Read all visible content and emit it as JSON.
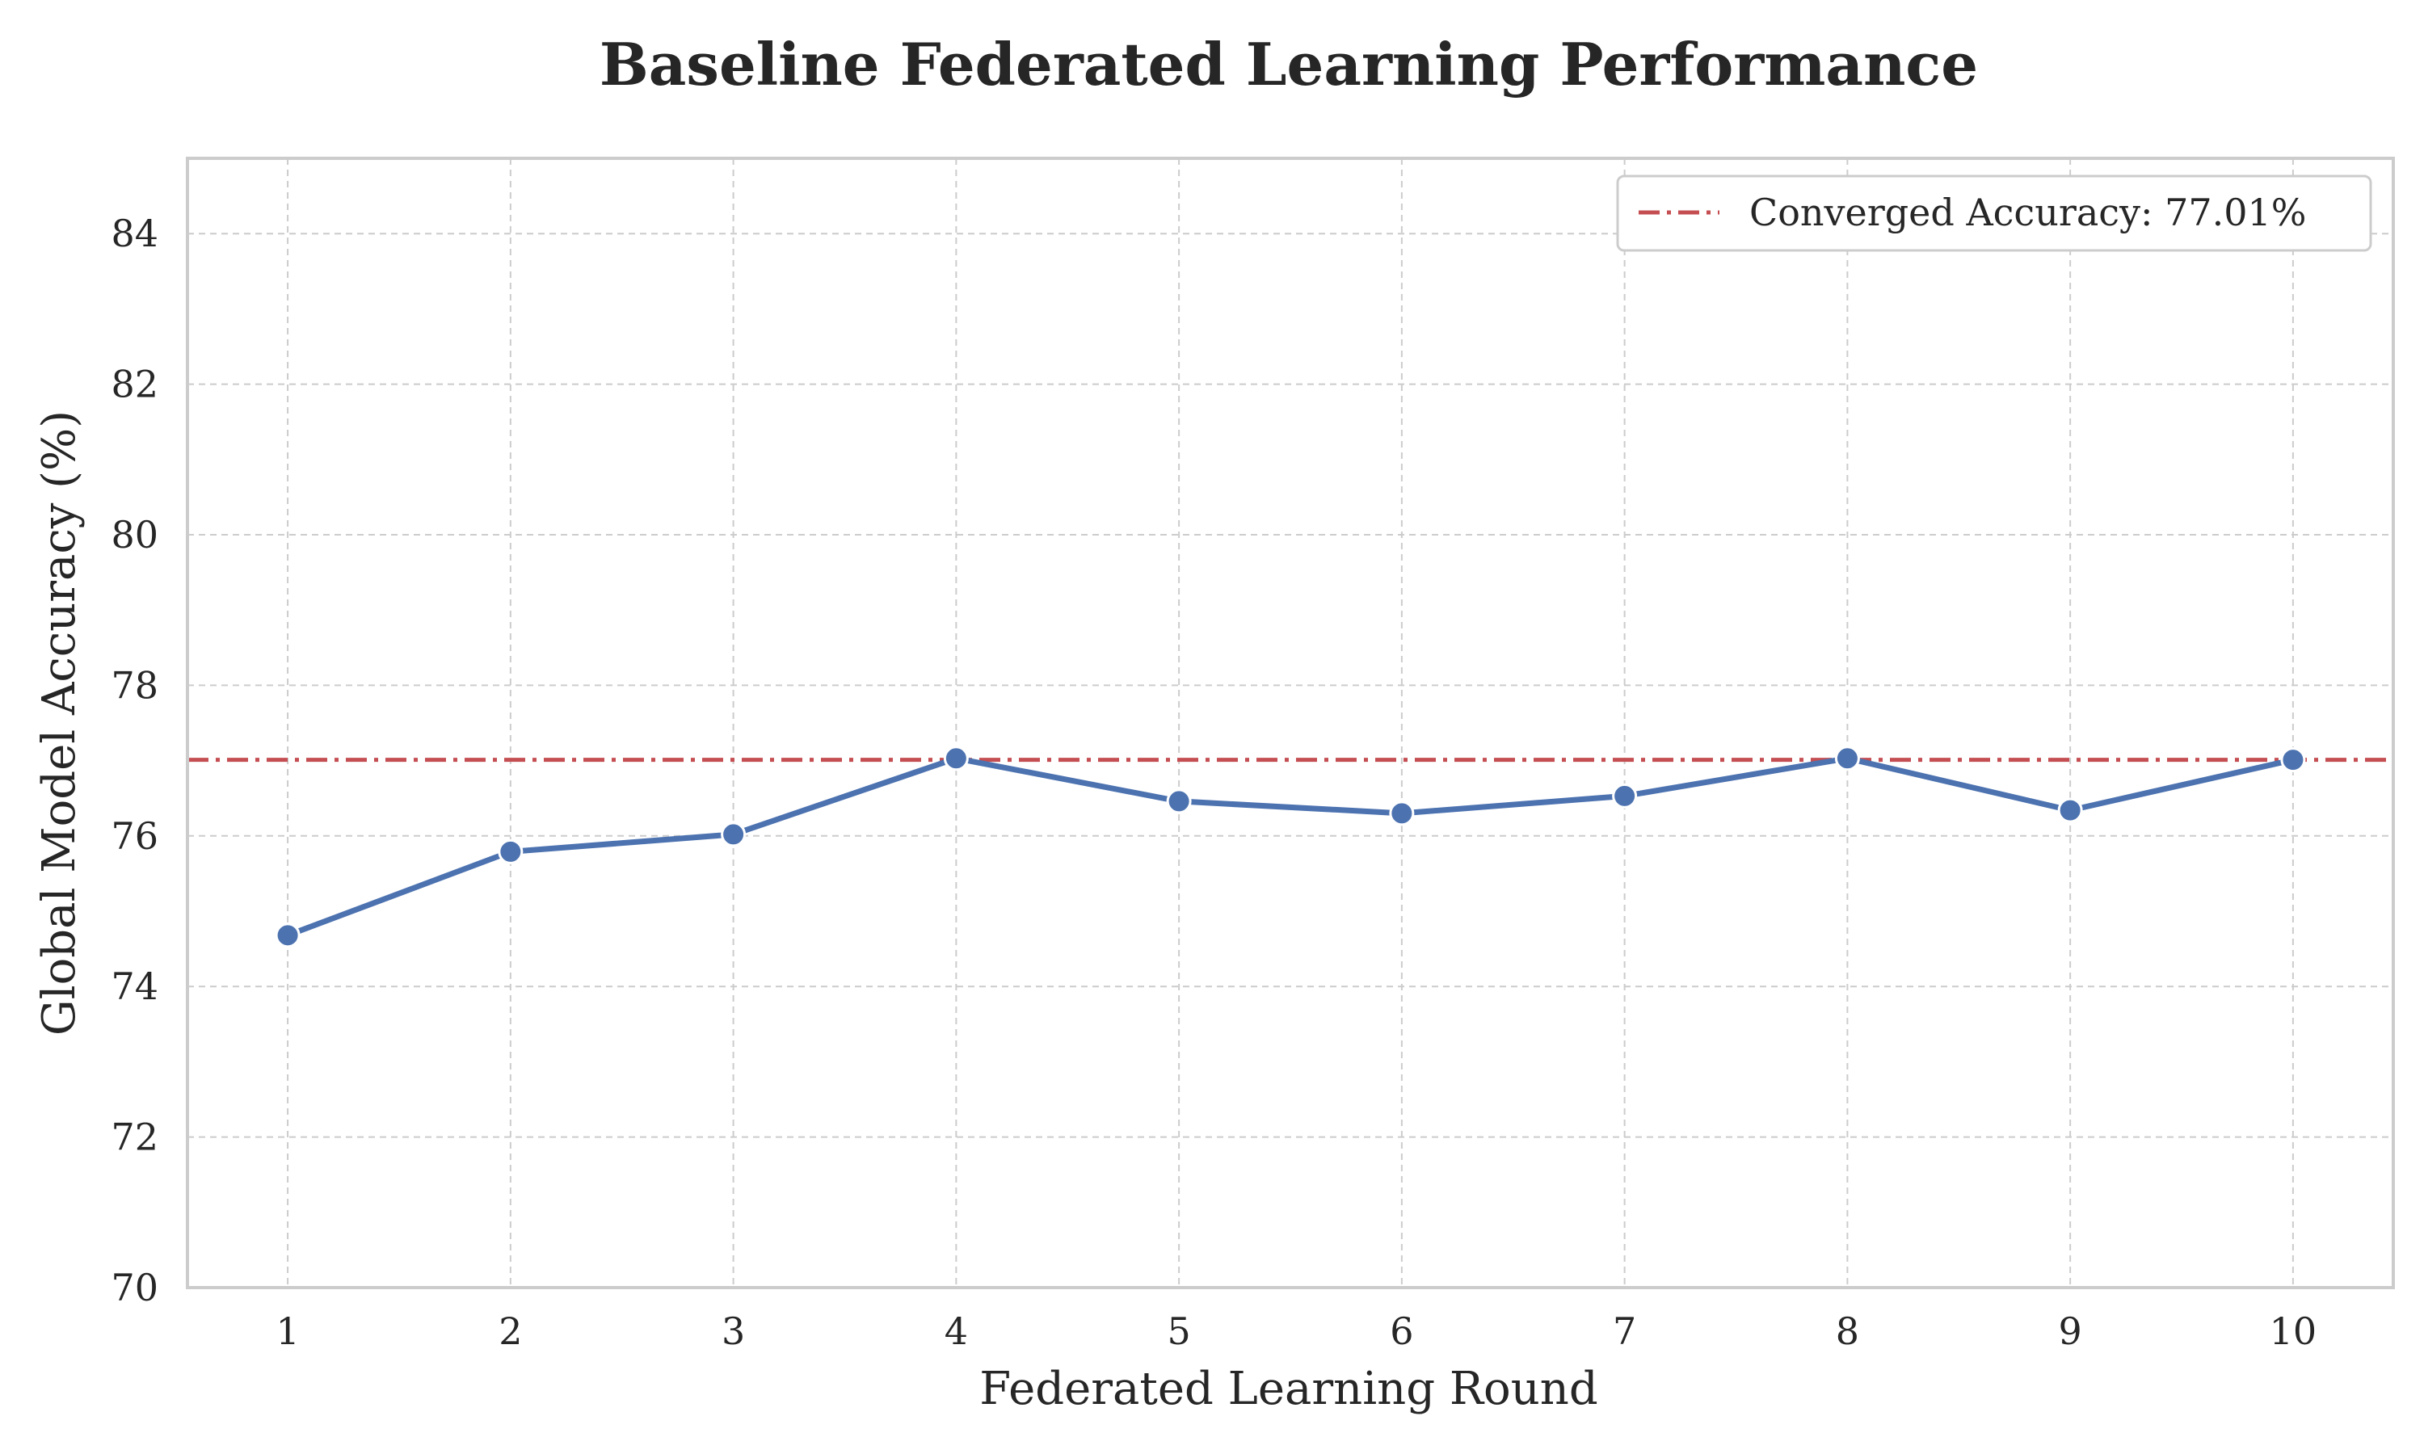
{
  "chart_data": {
    "type": "line",
    "title": "Baseline Federated Learning Performance",
    "xlabel": "Federated Learning Round",
    "ylabel": "Global Model Accuracy (%)",
    "x": [
      1,
      2,
      3,
      4,
      5,
      6,
      7,
      8,
      9,
      10
    ],
    "series": [
      {
        "values": [
          74.68,
          75.79,
          76.02,
          77.03,
          76.46,
          76.3,
          76.53,
          77.03,
          76.34,
          77.01
        ],
        "color": "#4c72b0"
      }
    ],
    "reference_line": {
      "label": "Converged Accuracy: 77.01%",
      "value": 77.01,
      "color": "#c44e52",
      "style": "dash-dot"
    },
    "xticks": [
      "1",
      "2",
      "3",
      "4",
      "5",
      "6",
      "7",
      "8",
      "9",
      "10"
    ],
    "yticks": [
      "70",
      "72",
      "74",
      "76",
      "78",
      "80",
      "82",
      "84"
    ],
    "ylim": [
      70,
      85
    ],
    "xlim": [
      0.55,
      10.45
    ],
    "grid": true,
    "legend_position": "top-right"
  }
}
